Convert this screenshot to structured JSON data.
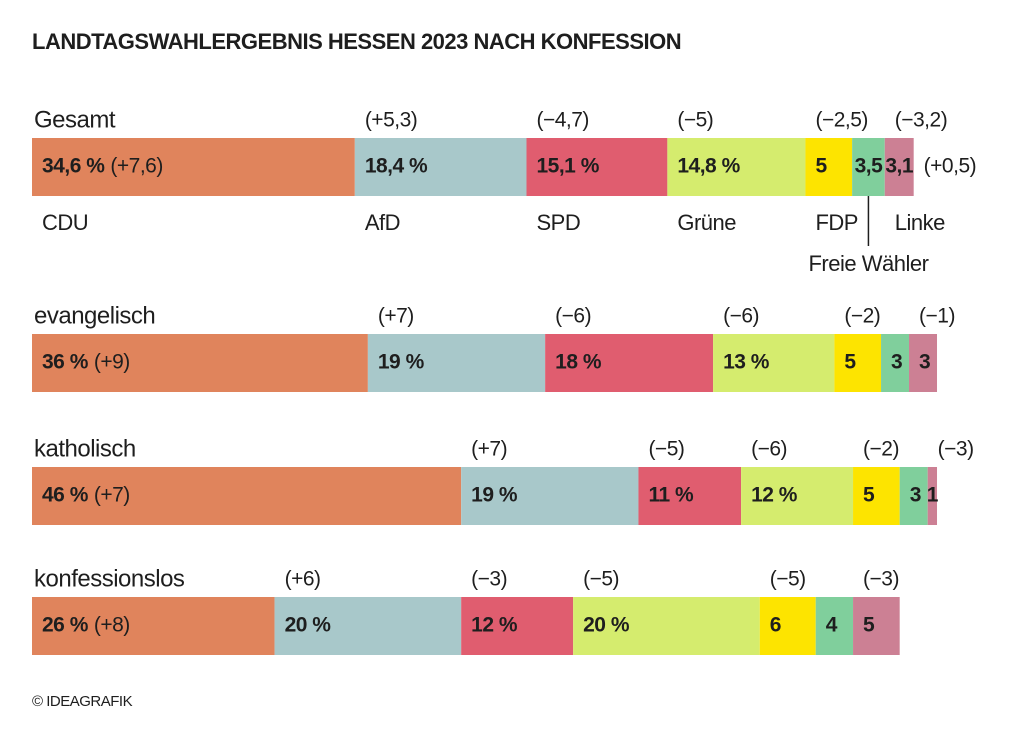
{
  "chart_data": {
    "type": "bar",
    "orientation": "horizontal",
    "stacked": true,
    "title": "LANDTAGSWAHLERGEBNIS HESSEN 2023 NACH KONFESSION",
    "categories": [
      "Gesamt",
      "evangelisch",
      "katholisch",
      "konfessionslos"
    ],
    "xlim": [
      0,
      100
    ],
    "series": [
      {
        "name": "CDU",
        "color": "#e0845c",
        "values": [
          34.6,
          36,
          46,
          26
        ],
        "value_labels": [
          "34,6 %",
          "36 %",
          "46 %",
          "26 %"
        ],
        "changes": [
          "(+7,6)",
          "(+9)",
          "(+7)",
          "(+8)"
        ]
      },
      {
        "name": "AfD",
        "color": "#a8c8ca",
        "values": [
          18.4,
          19,
          19,
          20
        ],
        "value_labels": [
          "18,4 %",
          "19 %",
          "19 %",
          "20 %"
        ],
        "changes": [
          "(+5,3)",
          "(+7)",
          "(+7)",
          "(+6)"
        ]
      },
      {
        "name": "SPD",
        "color": "#e05d6f",
        "values": [
          15.1,
          18,
          11,
          12
        ],
        "value_labels": [
          "15,1 %",
          "18 %",
          "11 %",
          "12 %"
        ],
        "changes": [
          "(−4,7)",
          "(−6)",
          "(−5)",
          "(−3)"
        ]
      },
      {
        "name": "Grüne",
        "color": "#d5ec6e",
        "values": [
          14.8,
          13,
          12,
          20
        ],
        "value_labels": [
          "14,8 %",
          "13 %",
          "12 %",
          "20 %"
        ],
        "changes": [
          "(−5)",
          "(−6)",
          "(−6)",
          "(−5)"
        ]
      },
      {
        "name": "FDP",
        "color": "#fde400",
        "values": [
          5,
          5,
          5,
          6
        ],
        "value_labels": [
          "5",
          "5",
          "5",
          "6"
        ],
        "changes": [
          "(−2,5)",
          "(−2)",
          "(−2)",
          "(−5)"
        ]
      },
      {
        "name": "Freie Wähler",
        "color": "#80cf9c",
        "values": [
          3.5,
          3,
          3,
          4
        ],
        "value_labels": [
          "3,5",
          "3",
          "3",
          "4"
        ],
        "changes": [
          "(+0,5)",
          null,
          null,
          null
        ]
      },
      {
        "name": "Linke",
        "color": "#cc8094",
        "values": [
          3.1,
          3,
          1,
          5
        ],
        "value_labels": [
          "3,1",
          "3",
          "1",
          "5"
        ],
        "changes": [
          "(−3,2)",
          "(−1)",
          "(−3)",
          "(−3)"
        ]
      }
    ],
    "credit": "© IDEAGRAFIK"
  }
}
